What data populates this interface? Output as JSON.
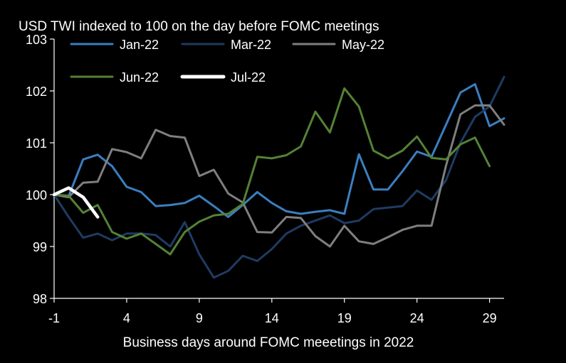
{
  "chart_data": {
    "type": "line",
    "title": "USD TWI indexed to 100 on the day before FOMC meetings",
    "xlabel": "Business days around FOMC meeetings in 2022",
    "ylabel": "",
    "xlim": [
      -1,
      30
    ],
    "ylim": [
      98,
      103
    ],
    "xticks": [
      -1,
      4,
      9,
      14,
      19,
      24,
      29
    ],
    "yticks": [
      98,
      99,
      100,
      101,
      102,
      103
    ],
    "grid": false,
    "legend": "top",
    "background": "#000000",
    "series": [
      {
        "name": "Jan-22",
        "color": "#3a7fc1",
        "x": [
          -1,
          0,
          1,
          2,
          3,
          4,
          5,
          6,
          7,
          8,
          9,
          10,
          11,
          12,
          13,
          14,
          15,
          16,
          17,
          18,
          19,
          20,
          21,
          22,
          23,
          24,
          25,
          26,
          27,
          28,
          29,
          30
        ],
        "values": [
          100.0,
          99.97,
          100.68,
          100.77,
          100.55,
          100.15,
          100.05,
          99.78,
          99.8,
          99.84,
          99.98,
          99.78,
          99.57,
          99.8,
          100.05,
          99.84,
          99.68,
          99.63,
          99.67,
          99.7,
          99.63,
          100.78,
          100.1,
          100.1,
          100.45,
          100.83,
          100.73,
          101.35,
          101.97,
          102.13,
          101.32,
          101.47
        ]
      },
      {
        "name": "Mar-22",
        "color": "#1f3b62",
        "x": [
          -1,
          0,
          1,
          2,
          3,
          4,
          5,
          6,
          7,
          8,
          9,
          10,
          11,
          12,
          13,
          14,
          15,
          16,
          17,
          18,
          19,
          20,
          21,
          22,
          23,
          24,
          25,
          26,
          27,
          28,
          29,
          30
        ],
        "values": [
          100.0,
          99.57,
          99.17,
          99.25,
          99.12,
          99.25,
          99.25,
          99.22,
          99.0,
          99.47,
          98.85,
          98.4,
          98.53,
          98.82,
          98.72,
          98.95,
          99.25,
          99.4,
          99.5,
          99.6,
          99.45,
          99.5,
          99.72,
          99.75,
          99.78,
          100.08,
          99.9,
          100.28,
          101.0,
          101.5,
          101.7,
          102.27
        ]
      },
      {
        "name": "May-22",
        "color": "#7f7f7f",
        "x": [
          -1,
          0,
          1,
          2,
          3,
          4,
          5,
          6,
          7,
          8,
          9,
          10,
          11,
          12,
          13,
          14,
          15,
          16,
          17,
          18,
          19,
          20,
          21,
          22,
          23,
          24,
          25,
          26,
          27,
          28,
          29,
          30
        ],
        "values": [
          100.0,
          99.95,
          100.23,
          100.25,
          100.88,
          100.82,
          100.7,
          101.25,
          101.13,
          101.1,
          100.36,
          100.48,
          100.02,
          99.85,
          99.28,
          99.27,
          99.57,
          99.55,
          99.2,
          99.0,
          99.4,
          99.1,
          99.05,
          99.18,
          99.32,
          99.4,
          99.4,
          100.56,
          101.55,
          101.72,
          101.72,
          101.35
        ]
      },
      {
        "name": "Jun-22",
        "color": "#548235",
        "x": [
          -1,
          0,
          1,
          2,
          3,
          4,
          5,
          6,
          7,
          8,
          9,
          10,
          11,
          12,
          13,
          14,
          15,
          16,
          17,
          18,
          19,
          20,
          21,
          22,
          23,
          24,
          25,
          26,
          27,
          28,
          29
        ],
        "values": [
          100.0,
          99.98,
          99.65,
          99.8,
          99.28,
          99.15,
          99.25,
          99.05,
          98.85,
          99.28,
          99.48,
          99.6,
          99.63,
          99.82,
          100.73,
          100.7,
          100.76,
          100.93,
          101.6,
          101.2,
          102.05,
          101.7,
          100.85,
          100.7,
          100.85,
          101.12,
          100.71,
          100.68,
          100.97,
          101.1,
          100.55
        ]
      },
      {
        "name": "Jul-22",
        "color": "#ffffff",
        "x": [
          -1,
          0,
          1,
          2
        ],
        "values": [
          100.0,
          100.13,
          99.95,
          99.57
        ]
      }
    ]
  }
}
